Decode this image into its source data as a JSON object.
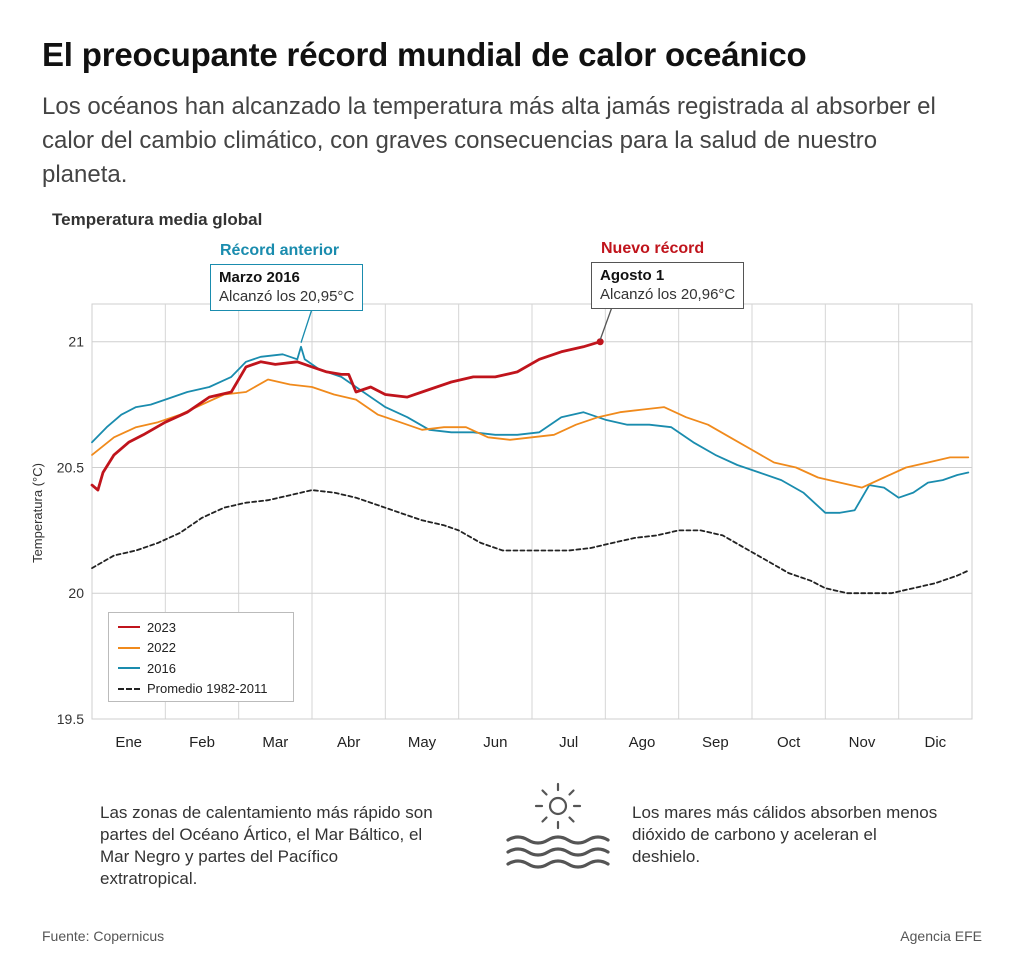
{
  "header": {
    "title": "El preocupante récord mundial de calor oceánico",
    "subtitle": "Los océanos han alcanzado la temperatura más alta jamás registrada al absorber el calor del cambio climático, con graves consecuencias para la salud de nuestro planeta."
  },
  "chart_data": {
    "type": "line",
    "title": "Temperatura media global",
    "xlabel": "",
    "ylabel": "Temperatura (°C)",
    "ylim": [
      19.5,
      21.15
    ],
    "yticks": [
      19.5,
      20,
      20.5,
      21
    ],
    "ytick_labels": [
      "19.5",
      "20",
      "20.5",
      "21"
    ],
    "xlim": [
      0,
      12
    ],
    "categories": [
      "Ene",
      "Feb",
      "Mar",
      "Abr",
      "May",
      "Jun",
      "Jul",
      "Ago",
      "Sep",
      "Oct",
      "Nov",
      "Dic"
    ],
    "grid": true,
    "legend_position": "bottom-left",
    "series": [
      {
        "name": "2023",
        "color": "#c0141c",
        "style": "solid",
        "x": [
          0,
          0.08,
          0.15,
          0.3,
          0.5,
          0.7,
          1.0,
          1.3,
          1.6,
          1.9,
          2.1,
          2.3,
          2.5,
          2.8,
          3.0,
          3.2,
          3.4,
          3.5,
          3.6,
          3.8,
          4.0,
          4.3,
          4.6,
          4.9,
          5.2,
          5.5,
          5.8,
          6.1,
          6.4,
          6.7,
          6.93
        ],
        "values": [
          20.43,
          20.41,
          20.48,
          20.55,
          20.6,
          20.63,
          20.68,
          20.72,
          20.78,
          20.8,
          20.9,
          20.92,
          20.91,
          20.92,
          20.9,
          20.88,
          20.87,
          20.87,
          20.8,
          20.82,
          20.79,
          20.78,
          20.81,
          20.84,
          20.86,
          20.86,
          20.88,
          20.93,
          20.96,
          20.98,
          21.0
        ]
      },
      {
        "name": "2022",
        "color": "#f08a1c",
        "style": "solid",
        "x": [
          0,
          0.3,
          0.6,
          0.9,
          1.2,
          1.5,
          1.8,
          2.1,
          2.4,
          2.7,
          3.0,
          3.3,
          3.6,
          3.9,
          4.2,
          4.5,
          4.8,
          5.1,
          5.4,
          5.7,
          6.0,
          6.3,
          6.6,
          6.9,
          7.2,
          7.5,
          7.8,
          8.1,
          8.4,
          8.7,
          9.0,
          9.3,
          9.6,
          9.9,
          10.2,
          10.5,
          10.8,
          11.1,
          11.4,
          11.7,
          11.95
        ],
        "values": [
          20.55,
          20.62,
          20.66,
          20.68,
          20.71,
          20.75,
          20.79,
          20.8,
          20.85,
          20.83,
          20.82,
          20.79,
          20.77,
          20.71,
          20.68,
          20.65,
          20.66,
          20.66,
          20.62,
          20.61,
          20.62,
          20.63,
          20.67,
          20.7,
          20.72,
          20.73,
          20.74,
          20.7,
          20.67,
          20.62,
          20.57,
          20.52,
          20.5,
          20.46,
          20.44,
          20.42,
          20.46,
          20.5,
          20.52,
          20.54,
          20.54
        ]
      },
      {
        "name": "2016",
        "color": "#1a8cae",
        "style": "solid",
        "x": [
          0,
          0.2,
          0.4,
          0.6,
          0.8,
          1.0,
          1.3,
          1.6,
          1.9,
          2.1,
          2.3,
          2.6,
          2.8,
          2.85,
          2.9,
          3.1,
          3.4,
          3.7,
          4.0,
          4.3,
          4.6,
          4.9,
          5.2,
          5.5,
          5.8,
          6.1,
          6.4,
          6.7,
          7.0,
          7.3,
          7.6,
          7.9,
          8.2,
          8.5,
          8.8,
          9.1,
          9.4,
          9.7,
          10.0,
          10.2,
          10.4,
          10.6,
          10.8,
          11.0,
          11.2,
          11.4,
          11.6,
          11.8,
          11.95
        ],
        "values": [
          20.6,
          20.66,
          20.71,
          20.74,
          20.75,
          20.77,
          20.8,
          20.82,
          20.86,
          20.92,
          20.94,
          20.95,
          20.93,
          20.98,
          20.93,
          20.89,
          20.86,
          20.8,
          20.74,
          20.7,
          20.65,
          20.64,
          20.64,
          20.63,
          20.63,
          20.64,
          20.7,
          20.72,
          20.69,
          20.67,
          20.67,
          20.66,
          20.6,
          20.55,
          20.51,
          20.48,
          20.45,
          20.4,
          20.32,
          20.32,
          20.33,
          20.43,
          20.42,
          20.38,
          20.4,
          20.44,
          20.45,
          20.47,
          20.48
        ]
      },
      {
        "name": "Promedio 1982-2011",
        "color": "#222222",
        "style": "dashed",
        "x": [
          0,
          0.3,
          0.6,
          0.9,
          1.2,
          1.5,
          1.8,
          2.1,
          2.4,
          2.7,
          3.0,
          3.3,
          3.6,
          3.9,
          4.2,
          4.5,
          4.8,
          5.0,
          5.3,
          5.6,
          5.9,
          6.2,
          6.5,
          6.8,
          7.1,
          7.4,
          7.7,
          8.0,
          8.3,
          8.6,
          8.9,
          9.2,
          9.5,
          9.8,
          10.0,
          10.3,
          10.6,
          10.9,
          11.2,
          11.5,
          11.8,
          11.95
        ],
        "values": [
          20.1,
          20.15,
          20.17,
          20.2,
          20.24,
          20.3,
          20.34,
          20.36,
          20.37,
          20.39,
          20.41,
          20.4,
          20.38,
          20.35,
          20.32,
          20.29,
          20.27,
          20.25,
          20.2,
          20.17,
          20.17,
          20.17,
          20.17,
          20.18,
          20.2,
          20.22,
          20.23,
          20.25,
          20.25,
          20.23,
          20.18,
          20.13,
          20.08,
          20.05,
          20.02,
          20.0,
          20.0,
          20.0,
          20.02,
          20.04,
          20.07,
          20.09
        ]
      }
    ],
    "annotations": [
      {
        "label": "Récord anterior",
        "label_color": "#1a8cae",
        "date": "Marzo 2016",
        "text": "Alcanzó los 20,95°C",
        "box_color": "#1a8cae"
      },
      {
        "label": "Nuevo récord",
        "label_color": "#c0141c",
        "date": "Agosto 1",
        "text": "Alcanzó los 20,96°C",
        "box_color": "#555555"
      }
    ]
  },
  "footnotes": {
    "left_text": "Las zonas de calentamiento más rápido son partes del Océano Ártico, el Mar Báltico, el Mar Negro y partes del Pacífico extratropical.",
    "right_text": "Los mares más cálidos absorben menos dióxido de carbono y aceleran el deshielo.",
    "icon": "sun-over-waves-icon"
  },
  "footer": {
    "source": "Fuente: Copernicus",
    "credit": "Agencia EFE"
  }
}
